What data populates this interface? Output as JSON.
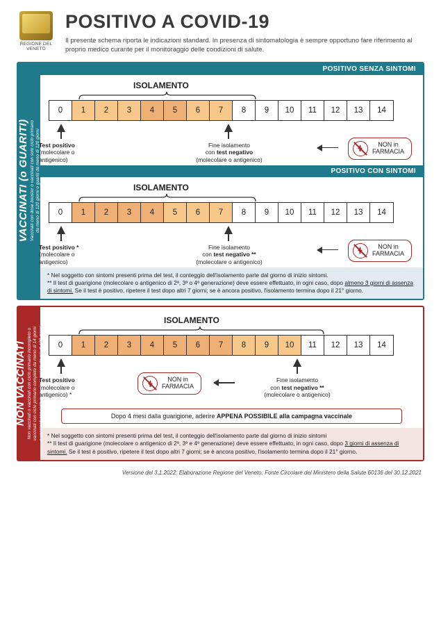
{
  "header": {
    "logo_caption": "REGIONE DEL VENETO",
    "title": "POSITIVO A COVID-19",
    "subtitle": "Il presente schema riporta le indicazioni standard. In presenza di sintomatologia è sempre opportuno fare riferimento al proprio medico curante per il monitoraggio delle condizioni di salute."
  },
  "panels": {
    "vaccinated": {
      "vbar_title": "VACCINATI (o GUARITI)",
      "vbar_sub1": "Vaccinati con dose booster o vaccinati con solo ciclo primario",
      "vbar_sub2": "da meno di 120 giorni o guariti da meno di 120 giorni",
      "scenario1": {
        "subhead": "POSITIVO SENZA SINTOMI",
        "iso_label": "ISOLAMENTO",
        "iso_start": 0,
        "iso_end": 7,
        "days": [
          "0",
          "1",
          "2",
          "3",
          "4",
          "5",
          "6",
          "7",
          "8",
          "9",
          "10",
          "11",
          "12",
          "13",
          "14"
        ],
        "colored": {
          "1": "or1",
          "2": "or1",
          "3": "or1",
          "4": "or2",
          "5": "or2",
          "6": "or1",
          "7": "or1"
        },
        "ann_start": {
          "l1b": "Test positivo",
          "l2": "(molecolare o",
          "l3": "antigenico)"
        },
        "ann_end": {
          "l1": "Fine isolamento",
          "l2a": "con ",
          "l2b": "test negativo",
          "l3": "(molecolare o antigenico)"
        },
        "badge": {
          "l1": "NON in",
          "l2": "FARMACIA"
        }
      },
      "scenario2": {
        "subhead": "POSITIVO CON SINTOMI",
        "iso_label": "ISOLAMENTO",
        "iso_start": 0,
        "iso_end": 7,
        "days": [
          "0",
          "1",
          "2",
          "3",
          "4",
          "5",
          "6",
          "7",
          "8",
          "9",
          "10",
          "11",
          "12",
          "13",
          "14"
        ],
        "colored": {
          "1": "or2",
          "2": "or2",
          "3": "or2",
          "4": "or2",
          "5": "or1",
          "6": "or1",
          "7": "or1"
        },
        "ann_start": {
          "l1b": "Test positivo *",
          "l2": "(molecolare o",
          "l3": "antigenico)"
        },
        "ann_end": {
          "l1": "Fine isolamento",
          "l2a": "con ",
          "l2b": "test negativo **",
          "l3": "(molecolare o antigenico)"
        },
        "badge": {
          "l1": "NON in",
          "l2": "FARMACIA"
        }
      },
      "note": {
        "l1": "* Nel soggetto con sintomi presenti prima del test, il conteggio dell'isolamento parte dal giorno di inizio sintomi.",
        "l2a": "** Il test di guarigione (molecolare o antigenico di 2ª, 3ª o 4ª generazione) deve essere effettuato, in ogni caso, dopo ",
        "l2u": "almeno 3 giorni di assenza di sintomi.",
        "l2b": " Se il test è positivo, ripetere il test dopo altri 7 giorni; se è ancora positivo, l'isolamento termina dopo il 21° giorno."
      }
    },
    "unvaccinated": {
      "vbar_title": "NON VACCINATI",
      "vbar_sub1": "Non vaccinati o vaccinati con ciclo primario incompleto o",
      "vbar_sub2": "vaccinati con ciclo primario completo da meno di 14 giorni",
      "vbar_sub3": "o vaccinati con ciclo primario completo da più di 120 giorni",
      "scenario": {
        "iso_label": "ISOLAMENTO",
        "iso_start": 0,
        "iso_end": 10,
        "days": [
          "0",
          "1",
          "2",
          "3",
          "4",
          "5",
          "6",
          "7",
          "8",
          "9",
          "10",
          "11",
          "12",
          "13",
          "14"
        ],
        "colored": {
          "1": "or2",
          "2": "or2",
          "3": "or2",
          "4": "or2",
          "5": "or2",
          "6": "or2",
          "7": "or2",
          "8": "or1",
          "9": "or1",
          "10": "or1"
        },
        "ann_start": {
          "l1b": "Test positivo",
          "l2": "(molecolare o",
          "l3": "antigenico) *"
        },
        "ann_end": {
          "l1": "Fine isolamento",
          "l2a": "con ",
          "l2b": "test negativo **",
          "l3": "(molecolare o antigenico)"
        },
        "badge": {
          "l1": "NON in",
          "l2": "FARMACIA"
        }
      },
      "callout": {
        "a": "Dopo 4 mesi dalla guarigione, aderire ",
        "b": "APPENA POSSIBILE alla campagna vaccinale"
      },
      "note": {
        "l1": "* Nel soggetto con sintomi presenti prima del test, il conteggio dell'isolamento parte dal giorno di inizio sintomi",
        "l2a": "** Il test di guarigione (molecolare o antigenico di 2ª, 3ª e 4ª generazione) deve essere effettuato, in ogni caso, dopo ",
        "l2u": "3 giorni di assenza di sintomi.",
        "l2b": " Se il test è positivo, ripetere il test dopo altri 7 giorni; se è ancora positivo, l'isolamento termina dopo il 21° giorno."
      }
    }
  },
  "footer": "Versione del 3.1.2022; Elaborazione Regione del Veneto; Fonte Circolare del Ministero della Salute 60136 del 30.12.2021"
}
